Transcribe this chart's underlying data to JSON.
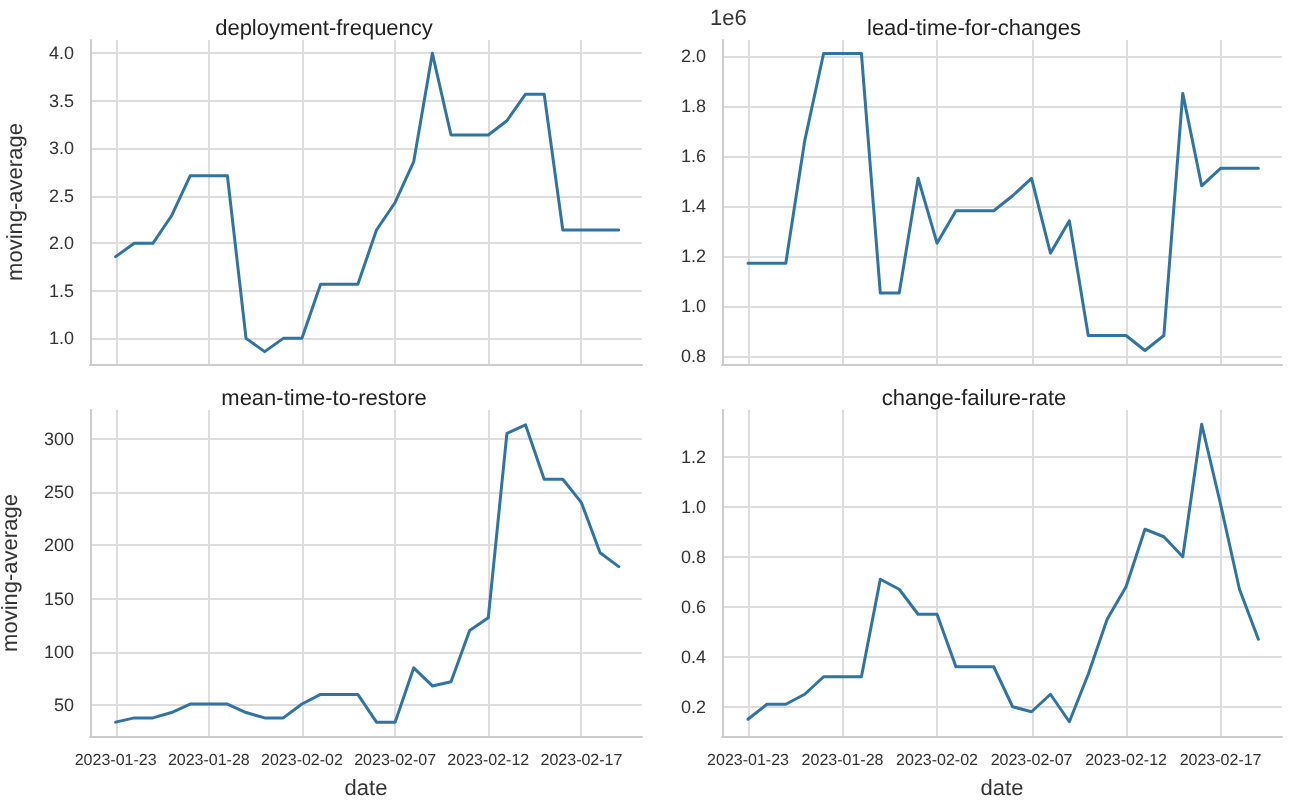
{
  "chart_data": [
    {
      "type": "line",
      "title": "deployment-frequency",
      "ylabel": "moving-average",
      "tick_labels": "y",
      "grid": true,
      "x": [
        "2023-01-23",
        "2023-01-24",
        "2023-01-25",
        "2023-01-26",
        "2023-01-27",
        "2023-01-28",
        "2023-01-29",
        "2023-01-30",
        "2023-01-31",
        "2023-02-01",
        "2023-02-02",
        "2023-02-03",
        "2023-02-04",
        "2023-02-05",
        "2023-02-06",
        "2023-02-07",
        "2023-02-08",
        "2023-02-09",
        "2023-02-10",
        "2023-02-11",
        "2023-02-12",
        "2023-02-13",
        "2023-02-14",
        "2023-02-15",
        "2023-02-16",
        "2023-02-17",
        "2023-02-18",
        "2023-02-19"
      ],
      "series": [
        {
          "color": "#3274a1",
          "values": [
            1.86,
            2.0,
            2.0,
            2.29,
            2.71,
            2.71,
            2.71,
            1.0,
            0.86,
            1.0,
            1.0,
            1.57,
            1.57,
            1.57,
            2.14,
            2.43,
            2.86,
            4.0,
            3.14,
            3.14,
            3.14,
            3.29,
            3.57,
            3.57,
            2.14,
            2.14,
            2.14,
            2.14
          ]
        }
      ],
      "xlim": [
        "2023-01-21T15:00",
        "2023-02-20T06:00"
      ],
      "xticks": [
        "2023-01-23",
        "2023-01-28",
        "2023-02-02",
        "2023-02-07",
        "2023-02-12",
        "2023-02-17"
      ],
      "ylim": [
        0.73,
        4.14
      ],
      "yticks": [
        {
          "value": 1.0,
          "label": "1.0"
        },
        1.5,
        {
          "value": 2.0,
          "label": "2.0"
        },
        2.5,
        {
          "value": 3.0,
          "label": "3.0"
        },
        3.5,
        {
          "value": 4.0,
          "label": "4.0"
        }
      ]
    },
    {
      "type": "line",
      "title": "lead-time-for-changes",
      "annotations": [
        "1e6"
      ],
      "tick_labels": "y",
      "grid": true,
      "x": [
        "2023-01-23",
        "2023-01-24",
        "2023-01-25",
        "2023-01-26",
        "2023-01-27",
        "2023-01-28",
        "2023-01-29",
        "2023-01-30",
        "2023-01-31",
        "2023-02-01",
        "2023-02-02",
        "2023-02-03",
        "2023-02-04",
        "2023-02-05",
        "2023-02-06",
        "2023-02-07",
        "2023-02-08",
        "2023-02-09",
        "2023-02-10",
        "2023-02-11",
        "2023-02-12",
        "2023-02-13",
        "2023-02-14",
        "2023-02-15",
        "2023-02-16",
        "2023-02-17",
        "2023-02-18",
        "2023-02-19"
      ],
      "series": [
        {
          "color": "#3274a1",
          "values": [
            1.17,
            1.17,
            1.17,
            1.66,
            2.01,
            2.01,
            2.01,
            1.05,
            1.05,
            1.51,
            1.25,
            1.38,
            1.38,
            1.38,
            1.44,
            1.51,
            1.21,
            1.34,
            0.88,
            0.88,
            0.88,
            0.82,
            0.88,
            1.85,
            1.48,
            1.55,
            1.55,
            1.55
          ]
        }
      ],
      "xlim": [
        "2023-01-21T15:00",
        "2023-02-20T06:00"
      ],
      "xticks": [
        "2023-01-23",
        "2023-01-28",
        "2023-02-02",
        "2023-02-07",
        "2023-02-12",
        "2023-02-17"
      ],
      "ylim": [
        0.766,
        2.064
      ],
      "yticks": [
        0.8,
        {
          "value": 1.0,
          "label": "1.0"
        },
        1.2,
        1.4,
        1.6,
        1.8,
        {
          "value": 2.0,
          "label": "2.0"
        }
      ]
    },
    {
      "type": "line",
      "title": "mean-time-to-restore",
      "xlabel": "date",
      "ylabel": "moving-average",
      "grid": true,
      "x": [
        "2023-01-23",
        "2023-01-24",
        "2023-01-25",
        "2023-01-26",
        "2023-01-27",
        "2023-01-28",
        "2023-01-29",
        "2023-01-30",
        "2023-01-31",
        "2023-02-01",
        "2023-02-02",
        "2023-02-03",
        "2023-02-04",
        "2023-02-05",
        "2023-02-06",
        "2023-02-07",
        "2023-02-08",
        "2023-02-09",
        "2023-02-10",
        "2023-02-11",
        "2023-02-12",
        "2023-02-13",
        "2023-02-14",
        "2023-02-15",
        "2023-02-16",
        "2023-02-17",
        "2023-02-18",
        "2023-02-19"
      ],
      "series": [
        {
          "color": "#3274a1",
          "values": [
            34,
            38,
            38,
            43,
            51,
            51,
            51,
            43,
            38,
            38,
            51,
            60,
            60,
            60,
            34,
            34,
            85,
            68,
            72,
            120,
            132,
            305,
            313,
            262,
            262,
            240,
            193,
            180
          ]
        }
      ],
      "xlim": [
        "2023-01-21T15:00",
        "2023-02-20T06:00"
      ],
      "xticks": [
        "2023-01-23",
        "2023-01-28",
        "2023-02-02",
        "2023-02-07",
        "2023-02-12",
        "2023-02-17"
      ],
      "ylim": [
        21,
        327
      ],
      "yticks": [
        50,
        100,
        150,
        200,
        250,
        300
      ]
    },
    {
      "type": "line",
      "title": "change-failure-rate",
      "xlabel": "date",
      "grid": true,
      "x": [
        "2023-01-23",
        "2023-01-24",
        "2023-01-25",
        "2023-01-26",
        "2023-01-27",
        "2023-01-28",
        "2023-01-29",
        "2023-01-30",
        "2023-01-31",
        "2023-02-01",
        "2023-02-02",
        "2023-02-03",
        "2023-02-04",
        "2023-02-05",
        "2023-02-06",
        "2023-02-07",
        "2023-02-08",
        "2023-02-09",
        "2023-02-10",
        "2023-02-11",
        "2023-02-12",
        "2023-02-13",
        "2023-02-14",
        "2023-02-15",
        "2023-02-16",
        "2023-02-17",
        "2023-02-18",
        "2023-02-19"
      ],
      "series": [
        {
          "color": "#3274a1",
          "values": [
            0.15,
            0.21,
            0.21,
            0.25,
            0.32,
            0.32,
            0.32,
            0.71,
            0.67,
            0.57,
            0.57,
            0.36,
            0.36,
            0.36,
            0.2,
            0.18,
            0.25,
            0.14,
            0.33,
            0.55,
            0.68,
            0.91,
            0.88,
            0.8,
            1.33,
            1.01,
            0.67,
            0.47
          ]
        }
      ],
      "xlim": [
        "2023-01-21T15:00",
        "2023-02-20T06:00"
      ],
      "xticks": [
        "2023-01-23",
        "2023-01-28",
        "2023-02-02",
        "2023-02-07",
        "2023-02-12",
        "2023-02-17"
      ],
      "ylim": [
        0.083,
        1.387
      ],
      "yticks": [
        0.2,
        0.4,
        0.6,
        0.8,
        {
          "value": 1.0,
          "label": "1.0"
        },
        1.2
      ]
    }
  ]
}
